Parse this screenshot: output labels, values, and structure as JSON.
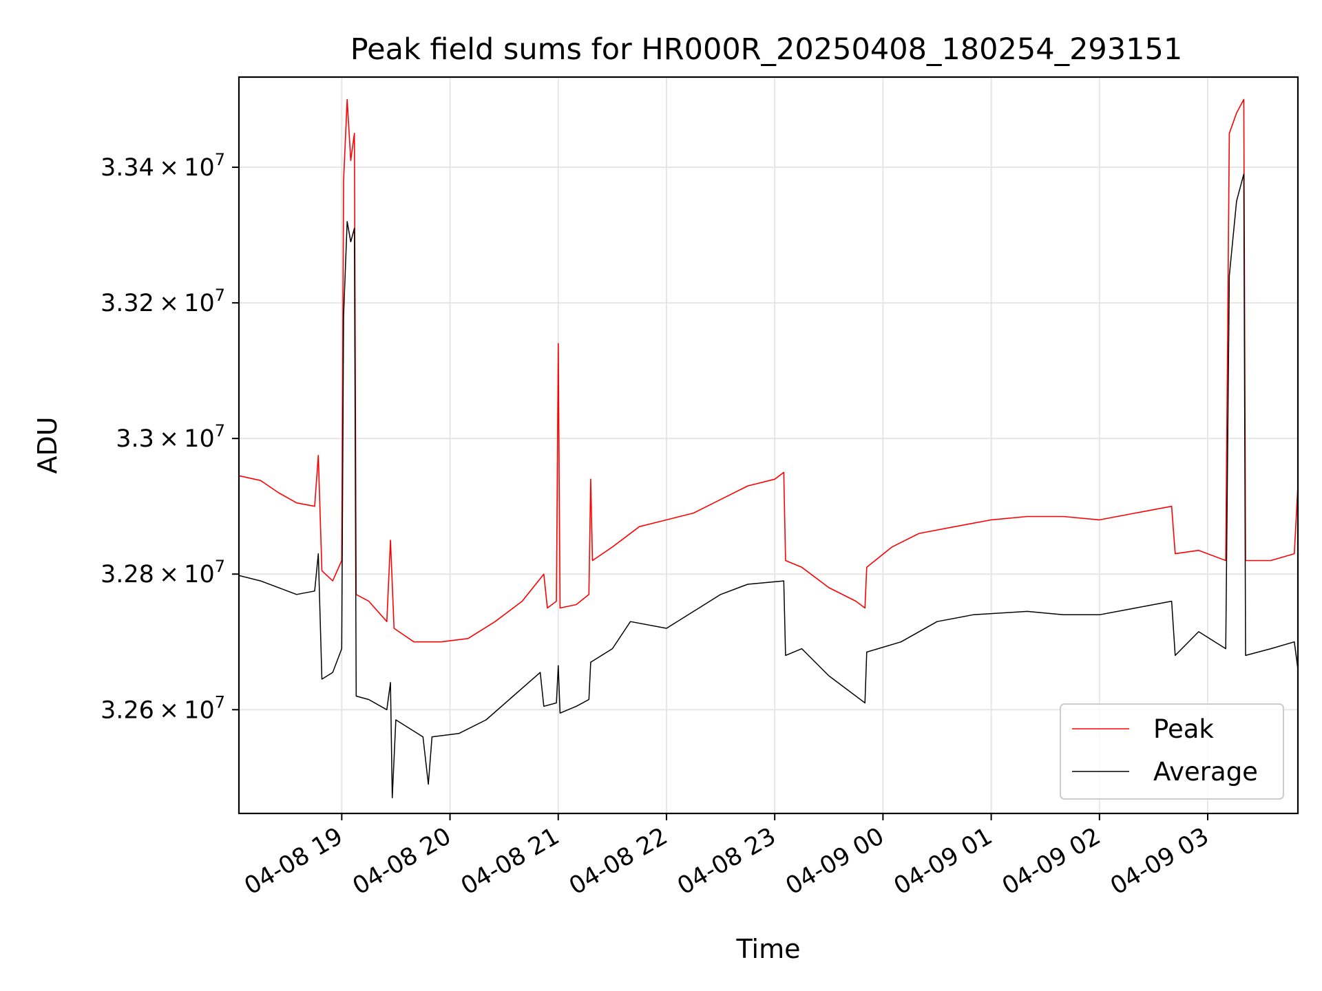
{
  "chart_data": {
    "type": "line",
    "title": "Peak field sums for HR000R_20250408_180254_293151",
    "xlabel": "Time",
    "ylabel": "ADU",
    "x_range": [
      "2025-04-08 18:03",
      "2025-04-09 03:50"
    ],
    "ylim": [
      32447000,
      33533000
    ],
    "grid": true,
    "legend_position": "lower right",
    "x_ticks": [
      {
        "time": "2025-04-08 19:00",
        "label": "04-08 19"
      },
      {
        "time": "2025-04-08 20:00",
        "label": "04-08 20"
      },
      {
        "time": "2025-04-08 21:00",
        "label": "04-08 21"
      },
      {
        "time": "2025-04-08 22:00",
        "label": "04-08 22"
      },
      {
        "time": "2025-04-08 23:00",
        "label": "04-08 23"
      },
      {
        "time": "2025-04-09 00:00",
        "label": "04-09 00"
      },
      {
        "time": "2025-04-09 01:00",
        "label": "04-09 01"
      },
      {
        "time": "2025-04-09 02:00",
        "label": "04-09 02"
      },
      {
        "time": "2025-04-09 03:00",
        "label": "04-09 03"
      }
    ],
    "y_ticks": [
      {
        "value": 32600000,
        "mantissa": "3.26",
        "exp": "7"
      },
      {
        "value": 32800000,
        "mantissa": "3.28",
        "exp": "7"
      },
      {
        "value": 33000000,
        "mantissa": "3.3",
        "exp": "7"
      },
      {
        "value": 33200000,
        "mantissa": "3.32",
        "exp": "7"
      },
      {
        "value": 33400000,
        "mantissa": "3.34",
        "exp": "7"
      }
    ],
    "series": [
      {
        "name": "Peak",
        "color": "#ff0000",
        "points": [
          [
            "2025-04-08 18:03",
            32945000
          ],
          [
            "2025-04-08 18:15",
            32938000
          ],
          [
            "2025-04-08 18:25",
            32920000
          ],
          [
            "2025-04-08 18:35",
            32905000
          ],
          [
            "2025-04-08 18:45",
            32900000
          ],
          [
            "2025-04-08 18:47",
            32975000
          ],
          [
            "2025-04-08 18:49",
            32805000
          ],
          [
            "2025-04-08 18:55",
            32790000
          ],
          [
            "2025-04-08 19:00",
            32820000
          ],
          [
            "2025-04-08 19:01",
            33380000
          ],
          [
            "2025-04-08 19:03",
            33500000
          ],
          [
            "2025-04-08 19:05",
            33410000
          ],
          [
            "2025-04-08 19:07",
            33450000
          ],
          [
            "2025-04-08 19:08",
            32770000
          ],
          [
            "2025-04-08 19:15",
            32760000
          ],
          [
            "2025-04-08 19:25",
            32730000
          ],
          [
            "2025-04-08 19:27",
            32850000
          ],
          [
            "2025-04-08 19:29",
            32720000
          ],
          [
            "2025-04-08 19:40",
            32700000
          ],
          [
            "2025-04-08 19:55",
            32700000
          ],
          [
            "2025-04-08 20:10",
            32705000
          ],
          [
            "2025-04-08 20:25",
            32730000
          ],
          [
            "2025-04-08 20:40",
            32760000
          ],
          [
            "2025-04-08 20:52",
            32800000
          ],
          [
            "2025-04-08 20:54",
            32750000
          ],
          [
            "2025-04-08 20:59",
            32760000
          ],
          [
            "2025-04-08 21:00",
            33140000
          ],
          [
            "2025-04-08 21:01",
            32750000
          ],
          [
            "2025-04-08 21:10",
            32755000
          ],
          [
            "2025-04-08 21:17",
            32770000
          ],
          [
            "2025-04-08 21:18",
            32940000
          ],
          [
            "2025-04-08 21:19",
            32820000
          ],
          [
            "2025-04-08 21:30",
            32840000
          ],
          [
            "2025-04-08 21:45",
            32870000
          ],
          [
            "2025-04-08 22:00",
            32880000
          ],
          [
            "2025-04-08 22:15",
            32890000
          ],
          [
            "2025-04-08 22:30",
            32910000
          ],
          [
            "2025-04-08 22:45",
            32930000
          ],
          [
            "2025-04-08 23:00",
            32940000
          ],
          [
            "2025-04-08 23:05",
            32950000
          ],
          [
            "2025-04-08 23:06",
            32820000
          ],
          [
            "2025-04-08 23:15",
            32810000
          ],
          [
            "2025-04-08 23:30",
            32780000
          ],
          [
            "2025-04-08 23:45",
            32760000
          ],
          [
            "2025-04-08 23:50",
            32750000
          ],
          [
            "2025-04-08 23:51",
            32810000
          ],
          [
            "2025-04-09 00:05",
            32840000
          ],
          [
            "2025-04-09 00:20",
            32860000
          ],
          [
            "2025-04-09 00:40",
            32870000
          ],
          [
            "2025-04-09 01:00",
            32880000
          ],
          [
            "2025-04-09 01:20",
            32885000
          ],
          [
            "2025-04-09 01:40",
            32885000
          ],
          [
            "2025-04-09 02:00",
            32880000
          ],
          [
            "2025-04-09 02:20",
            32890000
          ],
          [
            "2025-04-09 02:40",
            32900000
          ],
          [
            "2025-04-09 02:42",
            32830000
          ],
          [
            "2025-04-09 02:55",
            32835000
          ],
          [
            "2025-04-09 03:10",
            32820000
          ],
          [
            "2025-04-09 03:12",
            33450000
          ],
          [
            "2025-04-09 03:16",
            33480000
          ],
          [
            "2025-04-09 03:20",
            33500000
          ],
          [
            "2025-04-09 03:21",
            32820000
          ],
          [
            "2025-04-09 03:35",
            32820000
          ],
          [
            "2025-04-09 03:48",
            32830000
          ],
          [
            "2025-04-09 03:50",
            32930000
          ]
        ]
      },
      {
        "name": "Average",
        "color": "#000000",
        "points": [
          [
            "2025-04-08 18:03",
            32798000
          ],
          [
            "2025-04-08 18:15",
            32790000
          ],
          [
            "2025-04-08 18:25",
            32780000
          ],
          [
            "2025-04-08 18:35",
            32770000
          ],
          [
            "2025-04-08 18:45",
            32775000
          ],
          [
            "2025-04-08 18:47",
            32830000
          ],
          [
            "2025-04-08 18:49",
            32645000
          ],
          [
            "2025-04-08 18:55",
            32655000
          ],
          [
            "2025-04-08 19:00",
            32690000
          ],
          [
            "2025-04-08 19:01",
            33180000
          ],
          [
            "2025-04-08 19:03",
            33320000
          ],
          [
            "2025-04-08 19:05",
            33290000
          ],
          [
            "2025-04-08 19:07",
            33310000
          ],
          [
            "2025-04-08 19:08",
            32620000
          ],
          [
            "2025-04-08 19:15",
            32615000
          ],
          [
            "2025-04-08 19:25",
            32600000
          ],
          [
            "2025-04-08 19:27",
            32640000
          ],
          [
            "2025-04-08 19:28",
            32470000
          ],
          [
            "2025-04-08 19:30",
            32585000
          ],
          [
            "2025-04-08 19:45",
            32560000
          ],
          [
            "2025-04-08 19:48",
            32490000
          ],
          [
            "2025-04-08 19:50",
            32560000
          ],
          [
            "2025-04-08 20:05",
            32565000
          ],
          [
            "2025-04-08 20:20",
            32585000
          ],
          [
            "2025-04-08 20:35",
            32620000
          ],
          [
            "2025-04-08 20:50",
            32655000
          ],
          [
            "2025-04-08 20:52",
            32605000
          ],
          [
            "2025-04-08 20:59",
            32610000
          ],
          [
            "2025-04-08 21:00",
            32665000
          ],
          [
            "2025-04-08 21:01",
            32595000
          ],
          [
            "2025-04-08 21:10",
            32605000
          ],
          [
            "2025-04-08 21:17",
            32615000
          ],
          [
            "2025-04-08 21:18",
            32670000
          ],
          [
            "2025-04-08 21:30",
            32690000
          ],
          [
            "2025-04-08 21:40",
            32730000
          ],
          [
            "2025-04-08 22:00",
            32720000
          ],
          [
            "2025-04-08 22:15",
            32745000
          ],
          [
            "2025-04-08 22:30",
            32770000
          ],
          [
            "2025-04-08 22:45",
            32785000
          ],
          [
            "2025-04-08 23:05",
            32790000
          ],
          [
            "2025-04-08 23:06",
            32680000
          ],
          [
            "2025-04-08 23:15",
            32690000
          ],
          [
            "2025-04-08 23:30",
            32650000
          ],
          [
            "2025-04-08 23:50",
            32610000
          ],
          [
            "2025-04-08 23:51",
            32685000
          ],
          [
            "2025-04-09 00:10",
            32700000
          ],
          [
            "2025-04-09 00:30",
            32730000
          ],
          [
            "2025-04-09 00:50",
            32740000
          ],
          [
            "2025-04-09 01:20",
            32745000
          ],
          [
            "2025-04-09 01:40",
            32740000
          ],
          [
            "2025-04-09 02:00",
            32740000
          ],
          [
            "2025-04-09 02:20",
            32750000
          ],
          [
            "2025-04-09 02:40",
            32760000
          ],
          [
            "2025-04-09 02:42",
            32680000
          ],
          [
            "2025-04-09 02:55",
            32715000
          ],
          [
            "2025-04-09 03:10",
            32690000
          ],
          [
            "2025-04-09 03:12",
            33240000
          ],
          [
            "2025-04-09 03:16",
            33350000
          ],
          [
            "2025-04-09 03:20",
            33390000
          ],
          [
            "2025-04-09 03:21",
            32680000
          ],
          [
            "2025-04-09 03:35",
            32690000
          ],
          [
            "2025-04-09 03:48",
            32700000
          ],
          [
            "2025-04-09 03:50",
            32660000
          ]
        ]
      }
    ]
  }
}
